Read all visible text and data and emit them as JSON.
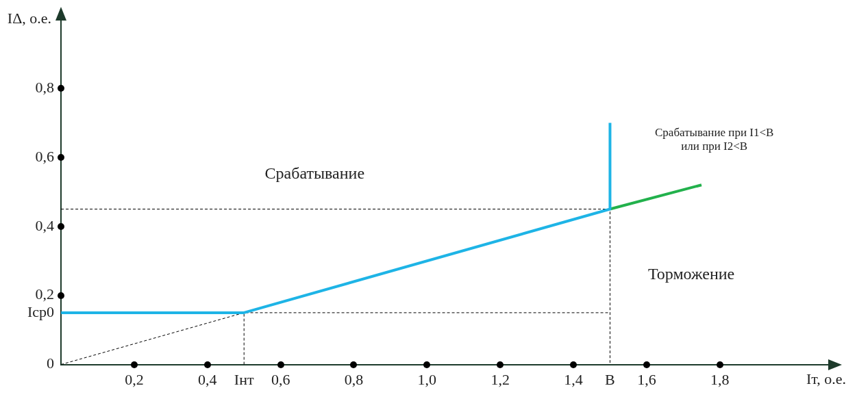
{
  "chart_data": {
    "type": "line",
    "xlabel": "Iт, о.е.",
    "ylabel": "IΔ, о.е.",
    "xlim": [
      0,
      2.1
    ],
    "ylim": [
      0,
      1.0
    ],
    "xticks": [
      {
        "value": 0.2,
        "label": "0,2"
      },
      {
        "value": 0.4,
        "label": "0,4"
      },
      {
        "value": 0.5,
        "label": "Iнт"
      },
      {
        "value": 0.6,
        "label": "0,6"
      },
      {
        "value": 0.8,
        "label": "0,8"
      },
      {
        "value": 1.0,
        "label": "1,0"
      },
      {
        "value": 1.2,
        "label": "1,2"
      },
      {
        "value": 1.4,
        "label": "1,4"
      },
      {
        "value": 1.5,
        "label": "B"
      },
      {
        "value": 1.6,
        "label": "1,6"
      },
      {
        "value": 1.8,
        "label": "1,8"
      }
    ],
    "yticks": [
      0,
      {
        "value": 0.15,
        "label": "Iср0"
      },
      {
        "value": 0.2,
        "label": "0,2"
      },
      {
        "value": 0.4,
        "label": "0,4"
      },
      {
        "value": 0.6,
        "label": "0,6"
      },
      {
        "value": 0.8,
        "label": "0,8"
      }
    ],
    "grid": false,
    "legend": false,
    "marker": "none",
    "series": [
      {
        "color": "#1eb4e6",
        "x": [
          0,
          0.5,
          1.5,
          1.5
        ],
        "values": [
          0.15,
          0.15,
          0.45,
          0.7
        ]
      },
      {
        "color": "#22b14c",
        "x": [
          1.5,
          1.75
        ],
        "values": [
          0.45,
          0.52
        ]
      },
      {
        "color": "#000000",
        "line_style": "dashed",
        "x": [
          0,
          0.5,
          1.5,
          null,
          0.5,
          0.5,
          null,
          0,
          1.5,
          1.5
        ],
        "values": [
          0,
          0.15,
          0.15,
          null,
          0,
          0.15,
          null,
          0.45,
          0.45,
          0
        ]
      }
    ],
    "annotations": [
      "Срабатывание",
      "Торможение",
      "Срабатывание при I1<B\nили при I2<B"
    ]
  }
}
